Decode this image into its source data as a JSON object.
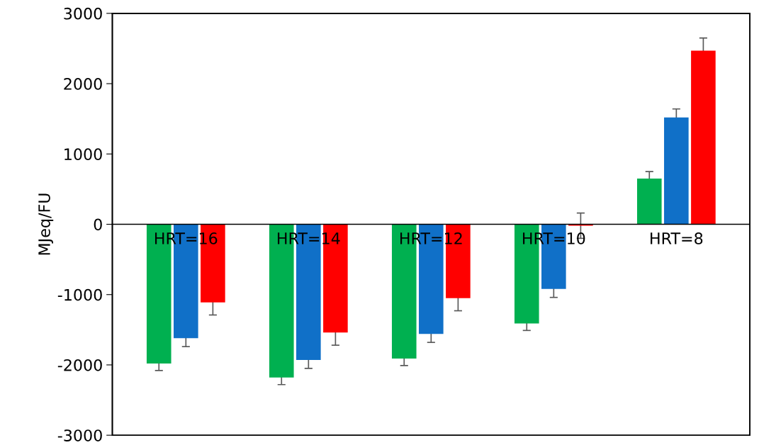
{
  "chart_data": {
    "type": "bar",
    "ylabel": "MJeq/FU",
    "categories": [
      "HRT=16",
      "HRT=14",
      "HRT=12",
      "HRT=10",
      "HRT=8"
    ],
    "series": [
      {
        "color": "#00b050",
        "values": [
          -1980,
          -2180,
          -1910,
          -1410,
          650
        ],
        "errors": [
          100,
          100,
          100,
          100,
          100
        ]
      },
      {
        "color": "#1070c8",
        "values": [
          -1620,
          -1930,
          -1560,
          -920,
          1520
        ],
        "errors": [
          120,
          120,
          120,
          120,
          120
        ]
      },
      {
        "color": "#ff0000",
        "values": [
          -1110,
          -1540,
          -1050,
          -20,
          2470
        ],
        "errors": [
          180,
          180,
          180,
          180,
          180
        ]
      }
    ],
    "ylim": [
      -3000,
      3000
    ],
    "yticks": [
      -3000,
      -2000,
      -1000,
      0,
      1000,
      2000,
      3000
    ],
    "grid": false,
    "legend": false
  }
}
